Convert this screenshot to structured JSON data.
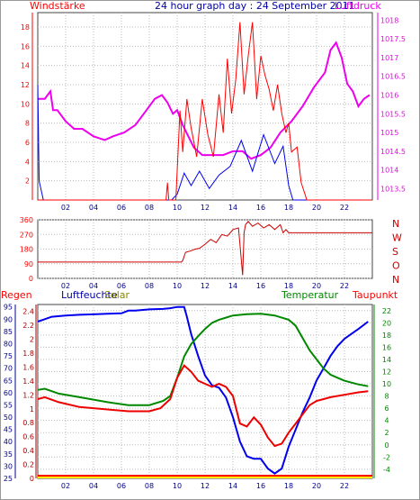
{
  "header": {
    "left_label": "Windstärke",
    "title": "24 hour graph day : 24 September 2011",
    "right_label": "Luftdruck"
  },
  "colors": {
    "red": "#ff0000",
    "magenta": "#ee00ee",
    "blue": "#0000ee",
    "green": "#008800",
    "olive": "#888800",
    "navy": "#000088",
    "yellow": "#ffee00",
    "frame": "#999999"
  },
  "chart_data": [
    {
      "type": "line",
      "title": "",
      "xlabel": "",
      "xlim": [
        0,
        24
      ],
      "x_ticks": [
        "02",
        "04",
        "06",
        "08",
        "10",
        "12",
        "14",
        "16",
        "18",
        "20",
        "22"
      ],
      "y_left_label": "Windstärke",
      "y_left_ticks": [
        "2",
        "4",
        "6",
        "8",
        "10",
        "12",
        "14",
        "16",
        "18"
      ],
      "ylim_left": [
        0,
        19.5
      ],
      "y_right_label": "Luftdruck",
      "y_right_ticks": [
        "1013.5",
        "1014",
        "1014.5",
        "1015",
        "1015.5",
        "1016",
        "1016.5",
        "1017",
        "1017.5",
        "1018"
      ],
      "ylim_right": [
        1013.2,
        1018.2
      ],
      "series": [
        {
          "axis": "right",
          "color": "#ee00ee",
          "x": [
            0,
            0.5,
            0.9,
            1.1,
            1.4,
            2.0,
            2.6,
            3.2,
            4.0,
            4.8,
            5.4,
            6.2,
            7.0,
            7.8,
            8.4,
            8.9,
            9.3,
            9.7,
            10.0,
            10.4,
            10.8,
            11.2,
            11.8,
            12.5,
            13.3,
            14.0,
            14.7,
            15.3,
            16.0,
            16.7,
            17.4,
            18.2,
            19.0,
            19.8,
            20.6,
            21.0,
            21.4,
            21.8,
            22.2,
            22.6,
            23.0,
            23.4,
            23.8
          ],
          "y": [
            1015.9,
            1015.9,
            1016.1,
            1015.6,
            1015.6,
            1015.3,
            1015.1,
            1015.1,
            1014.9,
            1014.8,
            1014.9,
            1015.0,
            1015.2,
            1015.6,
            1015.9,
            1016.0,
            1015.8,
            1015.5,
            1015.6,
            1015.2,
            1014.9,
            1014.6,
            1014.4,
            1014.4,
            1014.4,
            1014.5,
            1014.5,
            1014.3,
            1014.4,
            1014.6,
            1015.0,
            1015.3,
            1015.7,
            1016.2,
            1016.6,
            1017.2,
            1017.4,
            1017.0,
            1016.3,
            1016.1,
            1015.7,
            1015.9,
            1016.0
          ]
        },
        {
          "axis": "left",
          "color": "#0000ee",
          "x": [
            0,
            0.1,
            0.4,
            9.6,
            10.0,
            10.5,
            11.0,
            11.6,
            12.3,
            13.0,
            13.8,
            14.6,
            15.4,
            16.2,
            17.0,
            17.6,
            18.0,
            18.3,
            19.0,
            24.0
          ],
          "y": [
            12.0,
            2.0,
            0,
            0,
            0.6,
            2.8,
            1.5,
            3.0,
            1.2,
            2.6,
            3.5,
            6.2,
            3.0,
            6.8,
            3.8,
            5.6,
            1.5,
            0,
            0,
            0
          ]
        },
        {
          "axis": "left",
          "color": "#ff0000",
          "x": [
            0,
            9.2,
            9.3,
            9.4,
            9.9,
            10.2,
            10.4,
            10.7,
            11.0,
            11.4,
            11.8,
            12.2,
            12.6,
            13.0,
            13.3,
            13.6,
            13.9,
            14.2,
            14.5,
            14.8,
            15.1,
            15.4,
            15.7,
            16.0,
            16.3,
            16.6,
            16.9,
            17.2,
            17.5,
            17.8,
            18.0,
            18.2,
            18.6,
            18.9,
            19.3,
            19.6,
            24.0
          ],
          "y": [
            0,
            0,
            1.8,
            0,
            0,
            9.3,
            5.0,
            10.5,
            7.5,
            4.5,
            10.5,
            6.8,
            4.5,
            11.0,
            7.0,
            14.7,
            9.0,
            12.5,
            18.5,
            11.0,
            15.0,
            18.5,
            10.5,
            15.0,
            13.0,
            11.5,
            9.3,
            12.0,
            9.0,
            7.0,
            8.0,
            5.0,
            5.5,
            1.8,
            0,
            0,
            0
          ]
        }
      ]
    },
    {
      "type": "line",
      "title": "",
      "xlim": [
        0,
        24
      ],
      "x_ticks": [
        "02",
        "04",
        "06",
        "08",
        "10",
        "12",
        "14",
        "16",
        "18",
        "20",
        "22"
      ],
      "y_ticks": [
        "0",
        "90",
        "180",
        "270",
        "360"
      ],
      "ylim": [
        0,
        360
      ],
      "y_right_labels": [
        "N",
        "W",
        "S",
        "O",
        "N"
      ],
      "series": [
        {
          "color": "#cc0000",
          "x": [
            0,
            10.3,
            10.4,
            10.6,
            11.0,
            11.3,
            11.6,
            12.0,
            12.4,
            12.8,
            13.2,
            13.6,
            14.0,
            14.4,
            14.7,
            14.8,
            14.9,
            15.1,
            15.4,
            15.8,
            16.2,
            16.6,
            17.0,
            17.4,
            17.6,
            17.8,
            18.0,
            24.0
          ],
          "y": [
            100,
            100,
            110,
            160,
            170,
            180,
            185,
            210,
            240,
            220,
            270,
            260,
            300,
            310,
            20,
            280,
            330,
            350,
            320,
            340,
            310,
            330,
            300,
            330,
            280,
            300,
            280,
            280
          ]
        }
      ]
    },
    {
      "type": "line",
      "title": "",
      "xlim": [
        0,
        24
      ],
      "x_ticks": [
        "02",
        "04",
        "06",
        "08",
        "10",
        "12",
        "14",
        "16",
        "18",
        "20",
        "22"
      ],
      "series_labels": {
        "regen": "Regen",
        "luftfeuchte": "Luftfeuchte",
        "solar": "Solar",
        "temperatur": "Temperatur",
        "taupunkt": "Taupunkt"
      },
      "y_ticks_regen": [
        "0",
        "0.2",
        "0.4",
        "0.6",
        "0.8",
        "1",
        "1.2",
        "1.4",
        "1.6",
        "1.8",
        "2",
        "2.2",
        "2.4"
      ],
      "ylim_regen": [
        0,
        2.5
      ],
      "y_ticks_luftfeuchte": [
        "25",
        "30",
        "35",
        "40",
        "45",
        "50",
        "55",
        "60",
        "65",
        "70",
        "75",
        "80",
        "85",
        "90",
        "95"
      ],
      "ylim_luftfeuchte": [
        25,
        96
      ],
      "y_ticks_temperatur": [
        "-4",
        "-2",
        "0",
        "2",
        "4",
        "6",
        "8",
        "10",
        "12",
        "14",
        "16",
        "18",
        "20",
        "22"
      ],
      "ylim_temperatur": [
        -5.5,
        23
      ],
      "series": [
        {
          "name": "Luftfeuchte",
          "axis": "luftfeuchte",
          "color": "#0000ee",
          "x": [
            0,
            0.5,
            1.0,
            2.0,
            3.0,
            4.0,
            5.0,
            6.0,
            6.5,
            7.0,
            8.0,
            9.0,
            9.5,
            10.0,
            10.5,
            10.7,
            11.0,
            11.5,
            12.0,
            12.5,
            13.0,
            13.5,
            14.0,
            14.5,
            15.0,
            15.5,
            16.0,
            16.5,
            17.0,
            17.5,
            18.0,
            18.5,
            19.0,
            19.5,
            20.0,
            20.5,
            21.0,
            21.5,
            22.0,
            22.5,
            23.0,
            23.7
          ],
          "y": [
            89,
            90,
            91,
            91.5,
            91.8,
            92,
            92.2,
            92.4,
            93.5,
            93.5,
            94,
            94.2,
            94.5,
            95,
            95,
            91,
            84,
            75,
            67,
            63,
            62,
            58,
            50,
            40,
            34,
            33,
            33,
            29,
            27,
            29,
            38,
            45,
            52,
            58,
            65,
            70,
            75,
            79,
            82,
            84,
            86,
            89
          ]
        },
        {
          "name": "Temperatur",
          "axis": "temperatur",
          "color": "#008800",
          "x": [
            0,
            0.5,
            1.5,
            3.0,
            5.0,
            6.5,
            8.0,
            9.0,
            9.5,
            10.0,
            10.5,
            11.0,
            11.5,
            12.0,
            12.5,
            13.0,
            14.0,
            15.0,
            16.0,
            17.0,
            18.0,
            18.5,
            19.0,
            19.5,
            20.0,
            20.5,
            21.0,
            21.5,
            22.0,
            22.5,
            23.0,
            23.7
          ],
          "y": [
            9,
            9.2,
            8.4,
            7.8,
            7,
            6.5,
            6.5,
            7.2,
            8,
            11,
            14.5,
            16.5,
            17.8,
            19,
            20,
            20.5,
            21.2,
            21.4,
            21.5,
            21.2,
            20.5,
            19.5,
            17.5,
            15.5,
            14,
            12.5,
            11.5,
            11,
            10.5,
            10.2,
            9.9,
            9.6
          ]
        },
        {
          "name": "Taupunkt",
          "axis": "temperatur",
          "color": "#ee0000",
          "x": [
            0,
            0.5,
            1.5,
            3.0,
            5.0,
            6.5,
            8.0,
            8.8,
            9.5,
            10.0,
            10.5,
            11.0,
            11.5,
            12.0,
            12.5,
            13.0,
            13.5,
            14.0,
            14.5,
            15.0,
            15.5,
            16.0,
            16.5,
            17.0,
            17.5,
            18.0,
            18.5,
            19.0,
            19.5,
            20.0,
            20.5,
            21.0,
            22.0,
            23.0,
            23.7
          ],
          "y": [
            7.5,
            7.8,
            7.0,
            6.2,
            5.8,
            5.5,
            5.5,
            6.0,
            7.5,
            11,
            13,
            12,
            10.5,
            10,
            9.5,
            10,
            9.5,
            8,
            3.5,
            3,
            4.5,
            3.3,
            1.2,
            -0.2,
            0.2,
            2.0,
            3.5,
            5.0,
            6.5,
            7.2,
            7.5,
            7.8,
            8.2,
            8.6,
            8.8
          ]
        },
        {
          "name": "Regen",
          "axis": "regen",
          "color": "#ff0000",
          "x": [
            0,
            24
          ],
          "y": [
            0,
            0
          ]
        },
        {
          "name": "Solar",
          "axis": "regen",
          "color": "#ffee00",
          "x": [
            0,
            24
          ],
          "y": [
            0,
            0
          ]
        }
      ]
    }
  ]
}
